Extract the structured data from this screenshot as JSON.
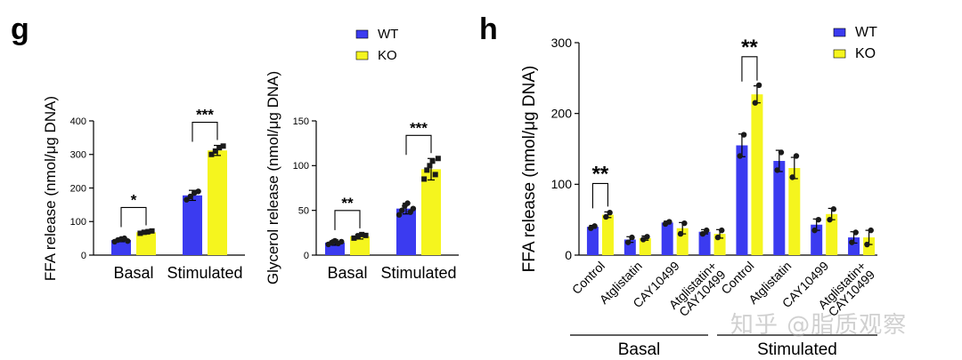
{
  "colors": {
    "wt": "#3b3bf0",
    "ko": "#f5f51e",
    "axis": "#000000",
    "point": "#1a1a1a"
  },
  "watermark": "知乎 @脂质观察",
  "panels": {
    "g": {
      "letter": "g"
    },
    "h": {
      "letter": "h"
    }
  },
  "chart_data": [
    {
      "panel": "g-left",
      "type": "bar",
      "ylabel": "FFA release (nmol/μg DNA)",
      "ylim": [
        0,
        400
      ],
      "yticks": [
        "0",
        "100",
        "200",
        "300",
        "400"
      ],
      "categories": [
        "Basal",
        "Stimulated"
      ],
      "series": [
        {
          "name": "WT",
          "values": [
            45,
            178
          ],
          "err": [
            5,
            15
          ],
          "points": [
            [
              40,
              45,
              48,
              50,
              42
            ],
            [
              165,
              175,
              185,
              190
            ]
          ]
        },
        {
          "name": "KO",
          "values": [
            68,
            312
          ],
          "err": [
            5,
            15
          ],
          "points": [
            [
              65,
              68,
              70,
              72
            ],
            [
              300,
              310,
              320,
              325
            ]
          ]
        }
      ],
      "significance": [
        "*",
        "***"
      ]
    },
    {
      "panel": "g-right",
      "type": "bar",
      "ylabel": "Glycerol release (nmol/μg DNA)",
      "ylim": [
        0,
        150
      ],
      "yticks": [
        "0",
        "50",
        "100",
        "150"
      ],
      "categories": [
        "Basal",
        "Stimulated"
      ],
      "series": [
        {
          "name": "WT",
          "values": [
            14,
            52
          ],
          "err": [
            3,
            6
          ],
          "points": [
            [
              12,
              14,
              16,
              13,
              15
            ],
            [
              45,
              50,
              55,
              58,
              48,
              52
            ]
          ]
        },
        {
          "name": "KO",
          "values": [
            21,
            96
          ],
          "err": [
            3,
            12
          ],
          "points": [
            [
              19,
              21,
              23,
              22
            ],
            [
              85,
              95,
              100,
              105,
              90,
              108
            ]
          ]
        }
      ],
      "significance": [
        "**",
        "***"
      ],
      "legend": [
        "WT",
        "KO"
      ],
      "legend_position": "top-right"
    },
    {
      "panel": "h",
      "type": "bar",
      "ylabel": "FFA release (nmol/μg DNA)",
      "ylim": [
        0,
        300
      ],
      "yticks": [
        "0",
        "100",
        "200",
        "300"
      ],
      "categories": [
        "Control",
        "Atglistatin",
        "CAY10499",
        "Atglistatin+\nCAY10499",
        "Control",
        "Atglistatin",
        "CAY10499",
        "Atglistatin+\nCAY10499"
      ],
      "groups": [
        {
          "label": "Basal",
          "categories": [
            0,
            1,
            2,
            3
          ]
        },
        {
          "label": "Stimulated",
          "categories": [
            4,
            5,
            6,
            7
          ]
        }
      ],
      "series": [
        {
          "name": "WT",
          "values": [
            40,
            22,
            46,
            33,
            155,
            133,
            43,
            25
          ],
          "err": [
            2,
            4,
            2,
            3,
            16,
            15,
            8,
            8
          ],
          "points": [
            [
              38,
              41
            ],
            [
              18,
              25
            ],
            [
              44,
              47
            ],
            [
              30,
              35
            ],
            [
              140,
              170
            ],
            [
              120,
              145
            ],
            [
              35,
              50
            ],
            [
              18,
              32
            ]
          ]
        },
        {
          "name": "KO",
          "values": [
            57,
            24,
            38,
            30,
            227,
            123,
            58,
            25
          ],
          "err": [
            4,
            3,
            8,
            6,
            12,
            15,
            8,
            10
          ],
          "points": [
            [
              54,
              60
            ],
            [
              22,
              26
            ],
            [
              30,
              45
            ],
            [
              25,
              35
            ],
            [
              215,
              240
            ],
            [
              110,
              140
            ],
            [
              50,
              65
            ],
            [
              15,
              35
            ]
          ]
        }
      ],
      "significance": [
        {
          "category": 0,
          "text": "**"
        },
        {
          "category": 4,
          "text": "**"
        }
      ],
      "legend": [
        "WT",
        "KO"
      ],
      "legend_position": "top-right"
    }
  ]
}
